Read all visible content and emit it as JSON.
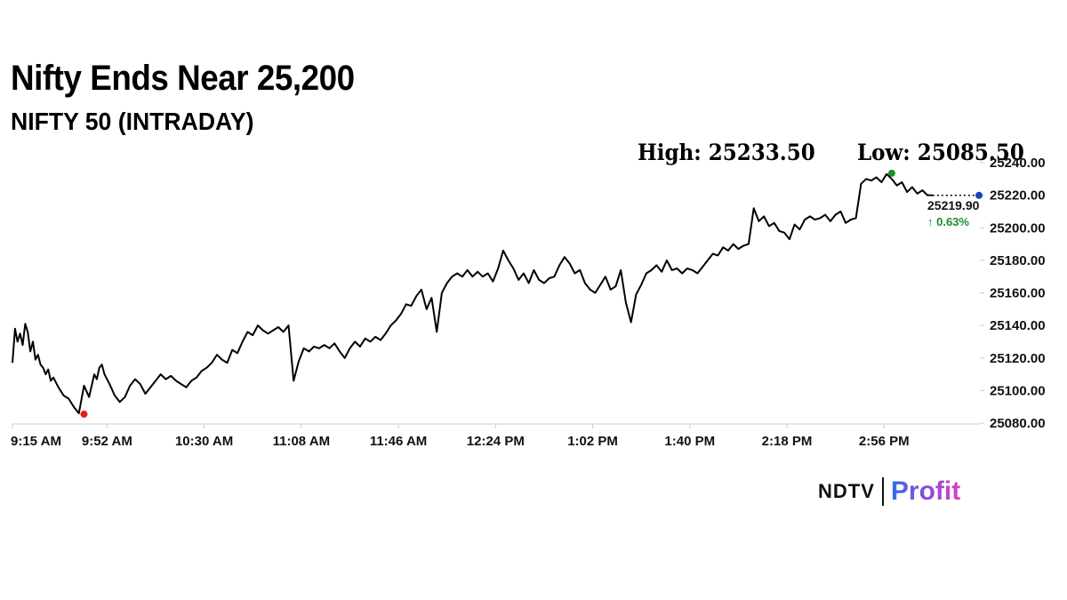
{
  "header": {
    "title": "Nifty Ends Near 25,200",
    "subtitle": "NIFTY 50 (INTRADAY)",
    "high_label": "High: 25233.50",
    "low_label": "Low: 25085.50"
  },
  "chart_data": {
    "type": "line",
    "title": "NIFTY 50 (INTRADAY)",
    "ylim": [
      25080,
      25240
    ],
    "y_ticks": [
      25080,
      25100,
      25120,
      25140,
      25160,
      25180,
      25200,
      25220,
      25240
    ],
    "y_tick_labels": [
      "25080.00",
      "25100.00",
      "25120.00",
      "25140.00",
      "25160.00",
      "25180.00",
      "25200.00",
      "25220.00",
      "25240.00"
    ],
    "x_tick_labels": [
      "9:15 AM",
      "9:52 AM",
      "10:30 AM",
      "11:08 AM",
      "11:46 AM",
      "12:24 PM",
      "1:02 PM",
      "1:40 PM",
      "2:18 PM",
      "2:56 PM"
    ],
    "x_tick_minutes": [
      0,
      37,
      75,
      113,
      151,
      189,
      227,
      265,
      303,
      341
    ],
    "x_range_minutes": [
      0,
      375
    ],
    "grid": false,
    "series": [
      {
        "x": [
          0,
          1,
          2,
          3,
          4,
          5,
          6,
          7,
          8,
          9,
          10,
          11,
          12,
          13,
          14,
          15,
          16,
          18,
          20,
          22,
          24,
          26,
          28,
          30,
          32,
          33,
          34,
          35,
          36,
          38,
          40,
          42,
          44,
          46,
          48,
          50,
          52,
          54,
          56,
          58,
          60,
          62,
          64,
          66,
          68,
          70,
          72,
          74,
          76,
          78,
          80,
          82,
          84,
          86,
          88,
          90,
          92,
          94,
          96,
          98,
          100,
          102,
          104,
          106,
          108,
          110,
          112,
          114,
          116,
          118,
          120,
          122,
          124,
          126,
          128,
          130,
          132,
          134,
          136,
          138,
          140,
          142,
          144,
          146,
          148,
          150,
          152,
          154,
          156,
          158,
          160,
          162,
          164,
          166,
          168,
          170,
          172,
          174,
          176,
          178,
          180,
          182,
          184,
          186,
          188,
          190,
          192,
          194,
          196,
          198,
          200,
          202,
          204,
          206,
          208,
          210,
          212,
          214,
          216,
          218,
          220,
          222,
          224,
          226,
          228,
          230,
          232,
          234,
          236,
          238,
          240,
          242,
          244,
          246,
          248,
          250,
          252,
          254,
          256,
          258,
          260,
          262,
          264,
          266,
          268,
          270,
          272,
          274,
          276,
          278,
          280,
          282,
          284,
          286,
          288,
          290,
          292,
          294,
          296,
          298,
          300,
          302,
          304,
          306,
          308,
          310,
          312,
          314,
          316,
          318,
          320,
          322,
          324,
          326,
          328,
          330,
          332,
          334,
          336,
          338,
          340,
          342,
          344,
          346,
          348,
          350,
          352,
          354,
          356,
          358,
          360
        ],
        "values": [
          25117,
          25138,
          25130,
          25135,
          25128,
          25141,
          25136,
          25124,
          25130,
          25119,
          25122,
          25116,
          25114,
          25110,
          25113,
          25106,
          25108,
          25102,
          25097,
          25095,
          25090,
          25086,
          25103,
          25096,
          25110,
          25107,
          25114,
          25116,
          25110,
          25104,
          25097,
          25093,
          25096,
          25103,
          25107,
          25104,
          25098,
          25102,
          25106,
          25110,
          25107,
          25109,
          25106,
          25104,
          25102,
          25106,
          25108,
          25112,
          25114,
          25117,
          25122,
          25119,
          25117,
          25125,
          25123,
          25130,
          25136,
          25134,
          25140,
          25137,
          25135,
          25137,
          25139,
          25136,
          25140,
          25106,
          25118,
          25126,
          25124,
          25127,
          25126,
          25128,
          25126,
          25129,
          25124,
          25120,
          25126,
          25130,
          25127,
          25132,
          25130,
          25133,
          25131,
          25135,
          25140,
          25143,
          25147,
          25153,
          25152,
          25158,
          25162,
          25150,
          25157,
          25136,
          25160,
          25166,
          25170,
          25172,
          25170,
          25174,
          25170,
          25173,
          25170,
          25172,
          25167,
          25175,
          25186,
          25180,
          25175,
          25168,
          25172,
          25166,
          25174,
          25168,
          25166,
          25169,
          25170,
          25177,
          25182,
          25178,
          25172,
          25174,
          25166,
          25162,
          25160,
          25165,
          25170,
          25162,
          25164,
          25174,
          25154,
          25142,
          25159,
          25165,
          25172,
          25174,
          25177,
          25173,
          25180,
          25174,
          25175,
          25172,
          25175,
          25174,
          25172,
          25176,
          25180,
          25184,
          25183,
          25188,
          25186,
          25190,
          25187,
          25189,
          25190,
          25212,
          25204,
          25207,
          25201,
          25203,
          25198,
          25197,
          25193,
          25202,
          25199,
          25205,
          25207,
          25205,
          25206,
          25208,
          25204,
          25208,
          25210,
          25203,
          25205,
          25206,
          25227,
          25230,
          25229,
          25231,
          25228,
          25233,
          25230,
          25226,
          25228,
          25222,
          25225,
          25221,
          25223,
          25220,
          25220
        ]
      }
    ],
    "low_point": {
      "x": 28,
      "y": 25085.5
    },
    "high_point": {
      "x": 344,
      "y": 25233.5
    },
    "last_point": {
      "x": 360,
      "y": 25219.9
    },
    "last_label": "25219.90",
    "change_label": "↑ 0.63%",
    "colors": {
      "line": "#000000",
      "low_marker": "#e01e1e",
      "high_marker": "#1a8f2a",
      "last_marker": "#1f3fbf",
      "change_text": "#1a8f2a",
      "axis": "#cccccc"
    }
  },
  "brand": {
    "ndtv": "NDTV",
    "profit": "Profit"
  }
}
